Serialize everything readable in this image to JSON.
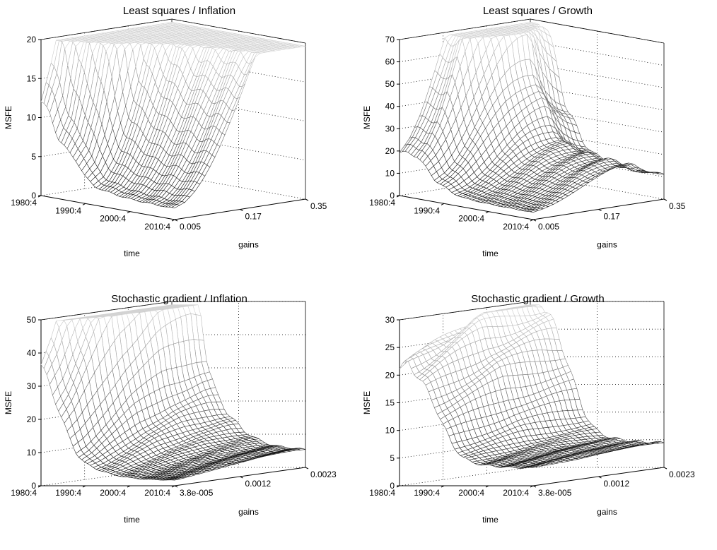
{
  "chart_data": [
    {
      "type": "surface",
      "title": "Least squares / Inflation",
      "zlabel": "MSFE",
      "xlabel": "time",
      "ylabel": "gains",
      "zticks": [
        "0",
        "5",
        "10",
        "15",
        "20"
      ],
      "zlim": [
        0,
        20
      ],
      "time_ticks": [
        "1980:4",
        "1990:4",
        "2000:4",
        "2010:4"
      ],
      "gain_ticks": [
        "0.005",
        "0.17",
        "0.35"
      ],
      "grid": true,
      "surface": {
        "time_profile": [
          12.5,
          11,
          8,
          6.5,
          5.5,
          3.5,
          2.5,
          2.2,
          2.0,
          1.8,
          1.7,
          1.6,
          1.6,
          1.5,
          1.5,
          1.5
        ],
        "gain_profile": [
          1.0,
          1.4,
          2.4,
          3.9,
          5.8,
          8.0,
          10.2,
          12.4,
          14.4,
          16.0,
          17.5,
          18.6,
          19.2
        ]
      }
    },
    {
      "type": "surface",
      "title": "Least squares / Growth",
      "zlabel": "MSFE",
      "xlabel": "time",
      "ylabel": "gains",
      "zticks": [
        "0",
        "10",
        "20",
        "30",
        "40",
        "50",
        "60",
        "70"
      ],
      "zlim": [
        0,
        70
      ],
      "time_ticks": [
        "1980:4",
        "1990:4",
        "2000:4",
        "2010:4"
      ],
      "gain_ticks": [
        "0.005",
        "0.17",
        "0.35"
      ],
      "grid": true,
      "surface": {
        "time_profile": [
          20,
          20.5,
          20,
          15,
          10,
          8,
          5.5,
          4.5,
          4.0,
          3.8,
          3.6,
          3.5,
          3.4,
          3.4,
          3.3,
          3.3
        ],
        "gain_profile": [
          1.0,
          1.3,
          1.8,
          2.5,
          3.3,
          4.1,
          4.8,
          5.3,
          5.6,
          5.7,
          4.4,
          3.8,
          3.5
        ]
      }
    },
    {
      "type": "surface",
      "title": "Stochastic gradient / Inflation",
      "zlabel": "MSFE",
      "xlabel": "time",
      "ylabel": "gains",
      "zticks": [
        "0",
        "10",
        "20",
        "30",
        "40",
        "50"
      ],
      "zlim": [
        0,
        50
      ],
      "time_ticks": [
        "1980:4",
        "1990:4",
        "2000:4",
        "2010:4"
      ],
      "gain_ticks": [
        "3.8e-005",
        "0.0012",
        "0.0023"
      ],
      "grid": true,
      "surface": {
        "time_profile": [
          38,
          31,
          24,
          16,
          10,
          7,
          5.5,
          4.5,
          3.5,
          3.0,
          2.5,
          2.2,
          2.0,
          1.9,
          1.8,
          1.7
        ],
        "gain_profile": [
          1.0,
          1.2,
          1.5,
          1.8,
          2.1,
          2.4,
          2.6,
          2.8,
          3.0,
          3.1,
          3.2,
          3.3,
          3.3
        ]
      }
    },
    {
      "type": "surface",
      "title": "Stochastic gradient / Growth",
      "zlabel": "MSFE",
      "xlabel": "time",
      "ylabel": "gains",
      "zticks": [
        "0",
        "5",
        "10",
        "15",
        "20",
        "25",
        "30"
      ],
      "zlim": [
        0,
        30
      ],
      "time_ticks": [
        "1980:4",
        "1990:4",
        "2000:4",
        "2010:4"
      ],
      "gain_ticks": [
        "3.8e-005",
        "0.0012",
        "0.0023"
      ],
      "grid": true,
      "surface": {
        "time_profile": [
          22,
          23,
          21,
          18,
          15,
          11,
          7.5,
          5.5,
          4.5,
          4.0,
          3.8,
          3.6,
          3.5,
          3.4,
          3.4,
          3.3
        ],
        "gain_profile": [
          1.0,
          1.05,
          1.1,
          1.15,
          1.2,
          1.25,
          1.3,
          1.32,
          1.34,
          1.36,
          1.38,
          1.39,
          1.4
        ]
      }
    }
  ]
}
